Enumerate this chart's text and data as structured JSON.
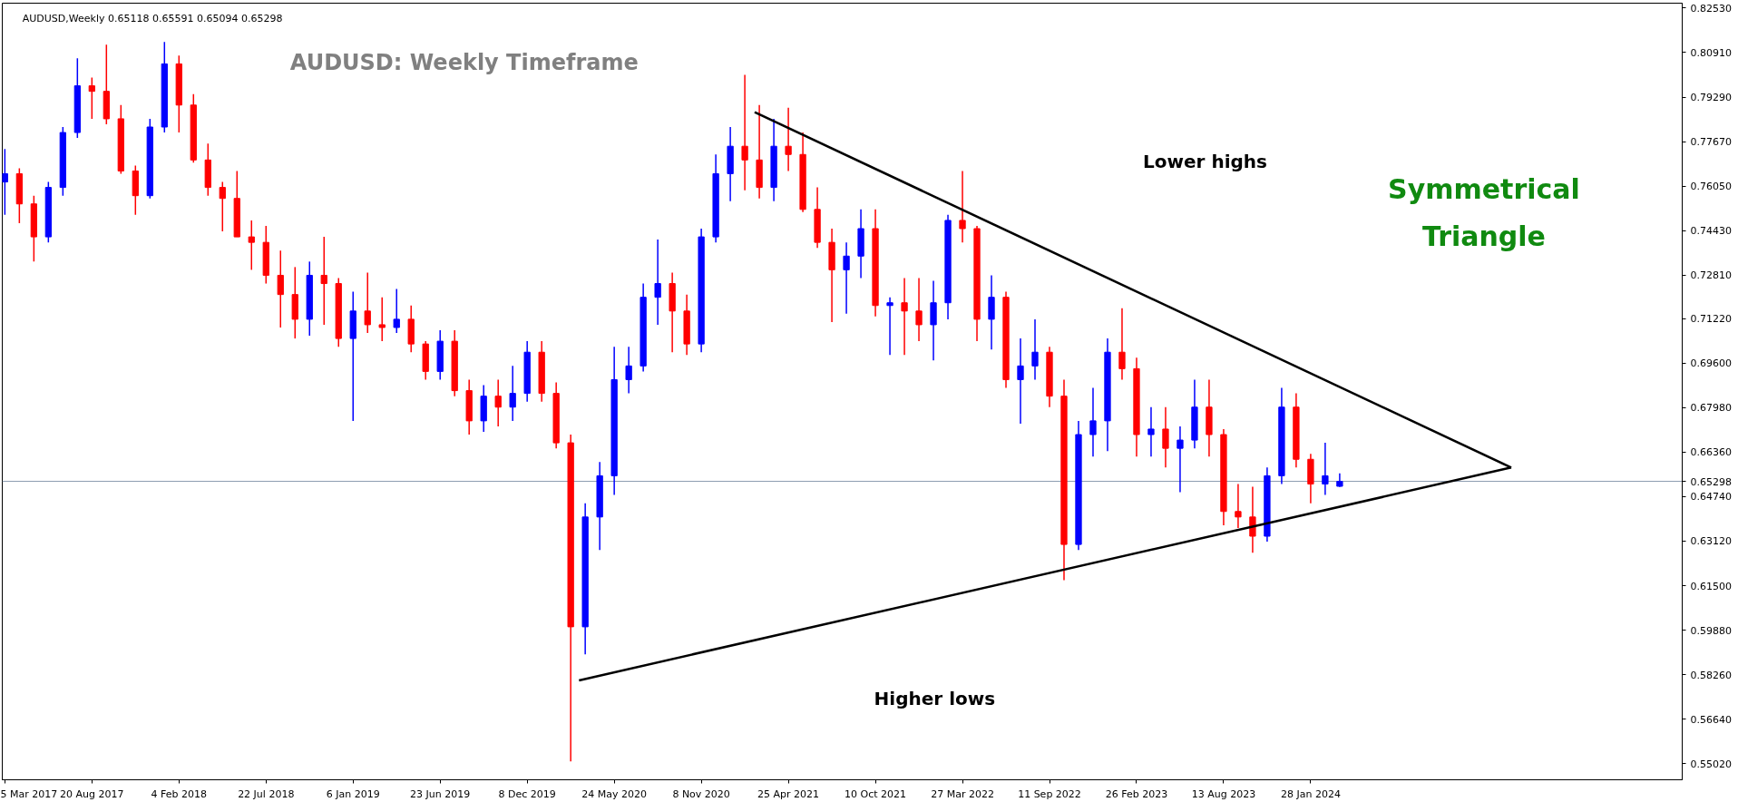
{
  "chart_data": {
    "type": "candlestick",
    "title": "AUDUSD: Weekly Timeframe",
    "subtitle": "AUDUSD,Weekly  0.65118 0.65591 0.65094 0.65298",
    "annotations": [
      "Lower highs",
      "Higher lows",
      "Symmetrical Triangle"
    ],
    "x": [
      "2017-03-05",
      "2017-04-02",
      "2017-04-30",
      "2017-05-28",
      "2017-06-25",
      "2017-07-23",
      "2017-08-20",
      "2017-09-17",
      "2017-10-15",
      "2017-11-12",
      "2017-12-10",
      "2018-01-07",
      "2018-02-04",
      "2018-03-04",
      "2018-04-01",
      "2018-04-29",
      "2018-05-27",
      "2018-06-24",
      "2018-07-22",
      "2018-08-19",
      "2018-09-16",
      "2018-10-14",
      "2018-11-11",
      "2018-12-09",
      "2019-01-06",
      "2019-02-03",
      "2019-03-03",
      "2019-03-31",
      "2019-04-28",
      "2019-05-26",
      "2019-06-23",
      "2019-07-21",
      "2019-08-18",
      "2019-09-15",
      "2019-10-13",
      "2019-11-10",
      "2019-12-08",
      "2020-01-05",
      "2020-02-02",
      "2020-03-01",
      "2020-03-29",
      "2020-04-26",
      "2020-05-24",
      "2020-06-21",
      "2020-07-19",
      "2020-08-16",
      "2020-09-13",
      "2020-10-11",
      "2020-11-08",
      "2020-12-06",
      "2021-01-03",
      "2021-01-31",
      "2021-02-28",
      "2021-03-28",
      "2021-04-25",
      "2021-05-23",
      "2021-06-20",
      "2021-07-18",
      "2021-08-15",
      "2021-09-12",
      "2021-10-10",
      "2021-11-07",
      "2021-12-05",
      "2022-01-02",
      "2022-01-30",
      "2022-02-27",
      "2022-03-27",
      "2022-04-24",
      "2022-05-22",
      "2022-06-19",
      "2022-07-17",
      "2022-08-14",
      "2022-09-11",
      "2022-10-09",
      "2022-11-06",
      "2022-12-04",
      "2023-01-01",
      "2023-01-29",
      "2023-02-26",
      "2023-03-26",
      "2023-04-23",
      "2023-05-21",
      "2023-06-18",
      "2023-07-16",
      "2023-08-13",
      "2023-09-10",
      "2023-10-08",
      "2023-11-05",
      "2023-12-03",
      "2023-12-31",
      "2024-01-28",
      "2024-02-25",
      "2024-03-24"
    ],
    "ohlc": [
      [
        0.762,
        0.774,
        0.75,
        0.765
      ],
      [
        0.765,
        0.767,
        0.747,
        0.754
      ],
      [
        0.754,
        0.757,
        0.733,
        0.742
      ],
      [
        0.742,
        0.762,
        0.74,
        0.76
      ],
      [
        0.76,
        0.782,
        0.757,
        0.78
      ],
      [
        0.78,
        0.807,
        0.778,
        0.797
      ],
      [
        0.797,
        0.8,
        0.785,
        0.795
      ],
      [
        0.795,
        0.812,
        0.783,
        0.785
      ],
      [
        0.785,
        0.79,
        0.765,
        0.766
      ],
      [
        0.766,
        0.768,
        0.75,
        0.757
      ],
      [
        0.757,
        0.785,
        0.756,
        0.782
      ],
      [
        0.782,
        0.813,
        0.78,
        0.805
      ],
      [
        0.805,
        0.808,
        0.78,
        0.79
      ],
      [
        0.79,
        0.794,
        0.769,
        0.77
      ],
      [
        0.77,
        0.776,
        0.757,
        0.76
      ],
      [
        0.76,
        0.762,
        0.744,
        0.756
      ],
      [
        0.756,
        0.766,
        0.742,
        0.742
      ],
      [
        0.742,
        0.748,
        0.73,
        0.74
      ],
      [
        0.74,
        0.746,
        0.725,
        0.728
      ],
      [
        0.728,
        0.737,
        0.709,
        0.721
      ],
      [
        0.721,
        0.731,
        0.705,
        0.712
      ],
      [
        0.712,
        0.733,
        0.706,
        0.728
      ],
      [
        0.728,
        0.742,
        0.71,
        0.725
      ],
      [
        0.725,
        0.727,
        0.702,
        0.705
      ],
      [
        0.705,
        0.722,
        0.675,
        0.715
      ],
      [
        0.715,
        0.729,
        0.707,
        0.71
      ],
      [
        0.71,
        0.72,
        0.704,
        0.709
      ],
      [
        0.709,
        0.723,
        0.707,
        0.712
      ],
      [
        0.712,
        0.717,
        0.7,
        0.703
      ],
      [
        0.703,
        0.704,
        0.69,
        0.693
      ],
      [
        0.693,
        0.708,
        0.69,
        0.704
      ],
      [
        0.704,
        0.708,
        0.684,
        0.686
      ],
      [
        0.686,
        0.69,
        0.67,
        0.675
      ],
      [
        0.675,
        0.688,
        0.671,
        0.684
      ],
      [
        0.684,
        0.69,
        0.673,
        0.68
      ],
      [
        0.68,
        0.695,
        0.675,
        0.685
      ],
      [
        0.685,
        0.704,
        0.682,
        0.7
      ],
      [
        0.7,
        0.704,
        0.682,
        0.685
      ],
      [
        0.685,
        0.689,
        0.665,
        0.667
      ],
      [
        0.667,
        0.67,
        0.551,
        0.6
      ],
      [
        0.6,
        0.645,
        0.59,
        0.64
      ],
      [
        0.64,
        0.66,
        0.628,
        0.655
      ],
      [
        0.655,
        0.702,
        0.648,
        0.69
      ],
      [
        0.69,
        0.702,
        0.685,
        0.695
      ],
      [
        0.695,
        0.725,
        0.693,
        0.72
      ],
      [
        0.72,
        0.741,
        0.71,
        0.725
      ],
      [
        0.725,
        0.729,
        0.7,
        0.715
      ],
      [
        0.715,
        0.721,
        0.699,
        0.703
      ],
      [
        0.703,
        0.745,
        0.7,
        0.742
      ],
      [
        0.742,
        0.772,
        0.74,
        0.765
      ],
      [
        0.765,
        0.782,
        0.755,
        0.775
      ],
      [
        0.775,
        0.801,
        0.759,
        0.77
      ],
      [
        0.77,
        0.79,
        0.756,
        0.76
      ],
      [
        0.76,
        0.785,
        0.755,
        0.775
      ],
      [
        0.775,
        0.789,
        0.766,
        0.772
      ],
      [
        0.772,
        0.78,
        0.751,
        0.752
      ],
      [
        0.752,
        0.76,
        0.738,
        0.74
      ],
      [
        0.74,
        0.745,
        0.711,
        0.73
      ],
      [
        0.73,
        0.74,
        0.714,
        0.735
      ],
      [
        0.735,
        0.752,
        0.727,
        0.745
      ],
      [
        0.745,
        0.752,
        0.713,
        0.717
      ],
      [
        0.717,
        0.72,
        0.699,
        0.718
      ],
      [
        0.718,
        0.727,
        0.699,
        0.715
      ],
      [
        0.715,
        0.727,
        0.704,
        0.71
      ],
      [
        0.71,
        0.726,
        0.697,
        0.718
      ],
      [
        0.718,
        0.75,
        0.712,
        0.748
      ],
      [
        0.748,
        0.766,
        0.74,
        0.745
      ],
      [
        0.745,
        0.746,
        0.704,
        0.712
      ],
      [
        0.712,
        0.728,
        0.701,
        0.72
      ],
      [
        0.72,
        0.722,
        0.687,
        0.69
      ],
      [
        0.69,
        0.705,
        0.674,
        0.695
      ],
      [
        0.695,
        0.712,
        0.69,
        0.7
      ],
      [
        0.7,
        0.702,
        0.68,
        0.684
      ],
      [
        0.684,
        0.69,
        0.617,
        0.63
      ],
      [
        0.63,
        0.675,
        0.628,
        0.67
      ],
      [
        0.67,
        0.687,
        0.662,
        0.675
      ],
      [
        0.675,
        0.705,
        0.664,
        0.7
      ],
      [
        0.7,
        0.716,
        0.69,
        0.694
      ],
      [
        0.694,
        0.698,
        0.662,
        0.67
      ],
      [
        0.67,
        0.68,
        0.662,
        0.672
      ],
      [
        0.672,
        0.68,
        0.658,
        0.665
      ],
      [
        0.665,
        0.673,
        0.649,
        0.668
      ],
      [
        0.668,
        0.69,
        0.665,
        0.68
      ],
      [
        0.68,
        0.69,
        0.662,
        0.67
      ],
      [
        0.67,
        0.672,
        0.637,
        0.642
      ],
      [
        0.642,
        0.652,
        0.636,
        0.64
      ],
      [
        0.64,
        0.651,
        0.627,
        0.633
      ],
      [
        0.633,
        0.658,
        0.631,
        0.655
      ],
      [
        0.655,
        0.687,
        0.652,
        0.68
      ],
      [
        0.68,
        0.685,
        0.658,
        0.661
      ],
      [
        0.661,
        0.663,
        0.645,
        0.652
      ],
      [
        0.652,
        0.667,
        0.648,
        0.655
      ],
      [
        0.65118,
        0.65591,
        0.65094,
        0.65298
      ]
    ],
    "colors": [
      "#0000ff",
      "#ff0000",
      "#ff0000",
      "#0000ff",
      "#0000ff",
      "#0000ff",
      "#ff0000",
      "#ff0000",
      "#ff0000",
      "#ff0000",
      "#0000ff",
      "#0000ff",
      "#ff0000",
      "#ff0000",
      "#ff0000",
      "#ff0000",
      "#ff0000",
      "#ff0000",
      "#ff0000",
      "#ff0000",
      "#ff0000",
      "#0000ff",
      "#ff0000",
      "#ff0000",
      "#0000ff",
      "#ff0000",
      "#ff0000",
      "#0000ff",
      "#ff0000",
      "#ff0000",
      "#0000ff",
      "#ff0000",
      "#ff0000",
      "#0000ff",
      "#ff0000",
      "#0000ff",
      "#0000ff",
      "#ff0000",
      "#ff0000",
      "#ff0000",
      "#0000ff",
      "#0000ff",
      "#0000ff",
      "#0000ff",
      "#0000ff",
      "#0000ff",
      "#ff0000",
      "#ff0000",
      "#0000ff",
      "#0000ff",
      "#0000ff",
      "#ff0000",
      "#ff0000",
      "#0000ff",
      "#ff0000",
      "#ff0000",
      "#ff0000",
      "#ff0000",
      "#0000ff",
      "#0000ff",
      "#ff0000",
      "#0000ff",
      "#ff0000",
      "#ff0000",
      "#0000ff",
      "#0000ff",
      "#ff0000",
      "#ff0000",
      "#0000ff",
      "#ff0000",
      "#0000ff",
      "#0000ff",
      "#ff0000",
      "#ff0000",
      "#0000ff",
      "#0000ff",
      "#0000ff",
      "#ff0000",
      "#ff0000",
      "#0000ff",
      "#ff0000",
      "#0000ff",
      "#0000ff",
      "#ff0000",
      "#ff0000",
      "#ff0000",
      "#ff0000",
      "#0000ff",
      "#0000ff",
      "#ff0000",
      "#ff0000",
      "#0000ff",
      "#0000ff"
    ],
    "series": [
      {
        "type": "line",
        "x": [
          "2021-02-19",
          "2025-02-18"
        ],
        "values": [
          0.7874,
          0.658
        ],
        "color": "#000000"
      },
      {
        "type": "line",
        "x": [
          "2020-03-17",
          "2025-02-18"
        ],
        "values": [
          0.5805,
          0.658
        ],
        "color": "#000000"
      }
    ],
    "xlim": [
      "2017-02-28",
      "2026-01-14"
    ],
    "xticks": [
      {
        "value": "2017-03-05",
        "label": "5 Mar 2017"
      },
      {
        "value": "2017-08-20",
        "label": "20 Aug 2017"
      },
      {
        "value": "2018-02-04",
        "label": "4 Feb 2018"
      },
      {
        "value": "2018-07-22",
        "label": "22 Jul 2018"
      },
      {
        "value": "2019-01-06",
        "label": "6 Jan 2019"
      },
      {
        "value": "2019-06-23",
        "label": "23 Jun 2019"
      },
      {
        "value": "2019-12-08",
        "label": "8 Dec 2019"
      },
      {
        "value": "2020-05-24",
        "label": "24 May 2020"
      },
      {
        "value": "2020-11-08",
        "label": "8 Nov 2020"
      },
      {
        "value": "2021-04-25",
        "label": "25 Apr 2021"
      },
      {
        "value": "2021-10-10",
        "label": "10 Oct 2021"
      },
      {
        "value": "2022-03-27",
        "label": "27 Mar 2022"
      },
      {
        "value": "2022-09-11",
        "label": "11 Sep 2022"
      },
      {
        "value": "2023-02-26",
        "label": "26 Feb 2023"
      },
      {
        "value": "2023-08-13",
        "label": "13 Aug 2023"
      },
      {
        "value": "2024-01-28",
        "label": "28 Jan 2024"
      }
    ],
    "ylim": [
      0.5443,
      0.8271
    ],
    "yticks": [
      {
        "value": 0.5502,
        "label": "0.55020"
      },
      {
        "value": 0.5664,
        "label": "0.56640"
      },
      {
        "value": 0.5826,
        "label": "0.58260"
      },
      {
        "value": 0.5988,
        "label": "0.59880"
      },
      {
        "value": 0.615,
        "label": "0.61500"
      },
      {
        "value": 0.6312,
        "label": "0.63120"
      },
      {
        "value": 0.6474,
        "label": "0.64740"
      },
      {
        "value": 0.6636,
        "label": "0.66360"
      },
      {
        "value": 0.6798,
        "label": "0.67980"
      },
      {
        "value": 0.696,
        "label": "0.69600"
      },
      {
        "value": 0.7122,
        "label": "0.71220"
      },
      {
        "value": 0.7281,
        "label": "0.72810"
      },
      {
        "value": 0.7443,
        "label": "0.74430"
      },
      {
        "value": 0.7605,
        "label": "0.76050"
      },
      {
        "value": 0.7767,
        "label": "0.77670"
      },
      {
        "value": 0.7929,
        "label": "0.79290"
      },
      {
        "value": 0.8091,
        "label": "0.80910"
      },
      {
        "value": 0.8253,
        "label": "0.82530"
      }
    ],
    "ref_lines": [
      {
        "axis": "y",
        "value": 0.65298,
        "label": "0.65298",
        "color": "#8c9bb0"
      }
    ],
    "grid": false
  }
}
